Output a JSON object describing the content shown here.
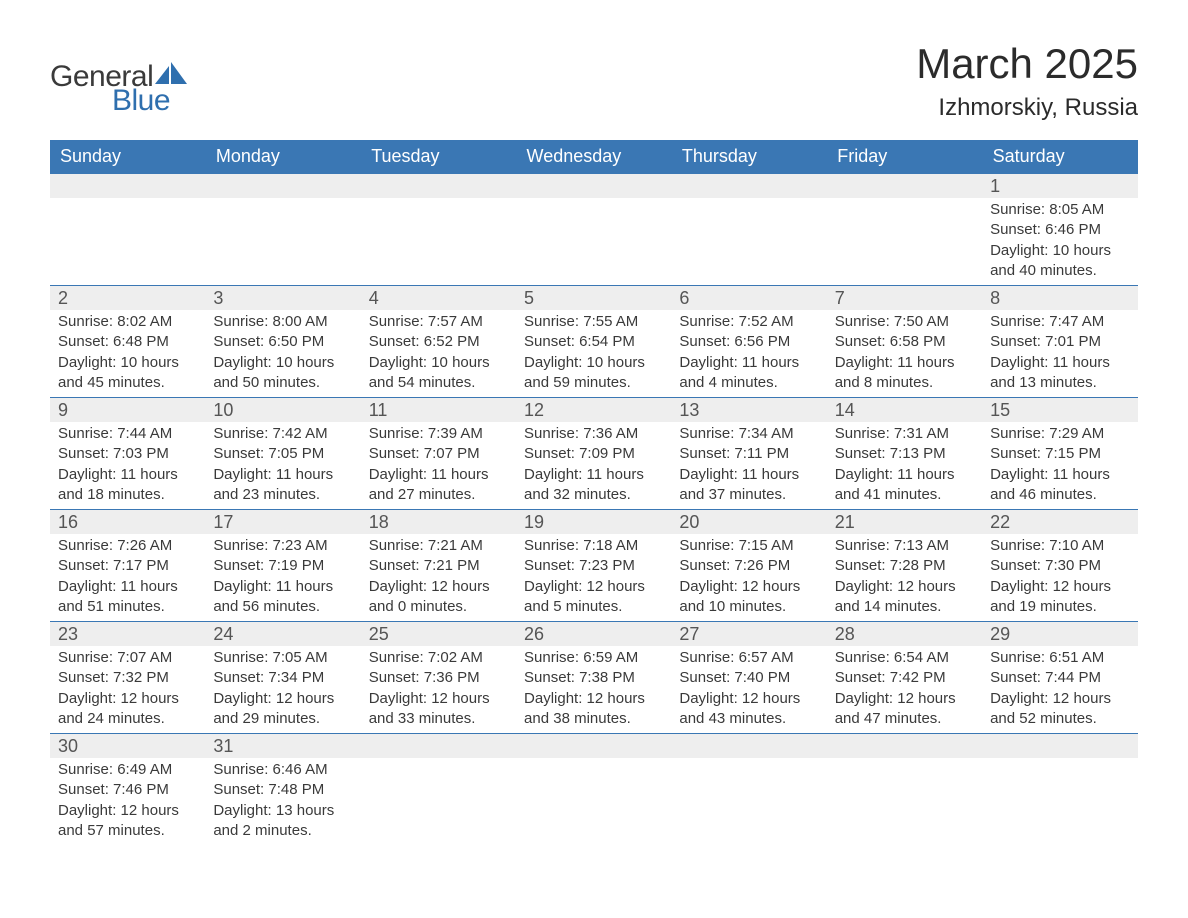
{
  "brand": {
    "part1": "General",
    "part2": "Blue"
  },
  "title": "March 2025",
  "location": "Izhmorskiy, Russia",
  "colors": {
    "header_bg": "#3a77b4",
    "accent": "#2f6fae",
    "row_alt": "#eeeeee",
    "text": "#3a3a3a"
  },
  "weekdays": [
    "Sunday",
    "Monday",
    "Tuesday",
    "Wednesday",
    "Thursday",
    "Friday",
    "Saturday"
  ],
  "weeks": [
    [
      null,
      null,
      null,
      null,
      null,
      null,
      {
        "n": "1",
        "sr": "Sunrise: 8:05 AM",
        "ss": "Sunset: 6:46 PM",
        "d1": "Daylight: 10 hours",
        "d2": "and 40 minutes."
      }
    ],
    [
      {
        "n": "2",
        "sr": "Sunrise: 8:02 AM",
        "ss": "Sunset: 6:48 PM",
        "d1": "Daylight: 10 hours",
        "d2": "and 45 minutes."
      },
      {
        "n": "3",
        "sr": "Sunrise: 8:00 AM",
        "ss": "Sunset: 6:50 PM",
        "d1": "Daylight: 10 hours",
        "d2": "and 50 minutes."
      },
      {
        "n": "4",
        "sr": "Sunrise: 7:57 AM",
        "ss": "Sunset: 6:52 PM",
        "d1": "Daylight: 10 hours",
        "d2": "and 54 minutes."
      },
      {
        "n": "5",
        "sr": "Sunrise: 7:55 AM",
        "ss": "Sunset: 6:54 PM",
        "d1": "Daylight: 10 hours",
        "d2": "and 59 minutes."
      },
      {
        "n": "6",
        "sr": "Sunrise: 7:52 AM",
        "ss": "Sunset: 6:56 PM",
        "d1": "Daylight: 11 hours",
        "d2": "and 4 minutes."
      },
      {
        "n": "7",
        "sr": "Sunrise: 7:50 AM",
        "ss": "Sunset: 6:58 PM",
        "d1": "Daylight: 11 hours",
        "d2": "and 8 minutes."
      },
      {
        "n": "8",
        "sr": "Sunrise: 7:47 AM",
        "ss": "Sunset: 7:01 PM",
        "d1": "Daylight: 11 hours",
        "d2": "and 13 minutes."
      }
    ],
    [
      {
        "n": "9",
        "sr": "Sunrise: 7:44 AM",
        "ss": "Sunset: 7:03 PM",
        "d1": "Daylight: 11 hours",
        "d2": "and 18 minutes."
      },
      {
        "n": "10",
        "sr": "Sunrise: 7:42 AM",
        "ss": "Sunset: 7:05 PM",
        "d1": "Daylight: 11 hours",
        "d2": "and 23 minutes."
      },
      {
        "n": "11",
        "sr": "Sunrise: 7:39 AM",
        "ss": "Sunset: 7:07 PM",
        "d1": "Daylight: 11 hours",
        "d2": "and 27 minutes."
      },
      {
        "n": "12",
        "sr": "Sunrise: 7:36 AM",
        "ss": "Sunset: 7:09 PM",
        "d1": "Daylight: 11 hours",
        "d2": "and 32 minutes."
      },
      {
        "n": "13",
        "sr": "Sunrise: 7:34 AM",
        "ss": "Sunset: 7:11 PM",
        "d1": "Daylight: 11 hours",
        "d2": "and 37 minutes."
      },
      {
        "n": "14",
        "sr": "Sunrise: 7:31 AM",
        "ss": "Sunset: 7:13 PM",
        "d1": "Daylight: 11 hours",
        "d2": "and 41 minutes."
      },
      {
        "n": "15",
        "sr": "Sunrise: 7:29 AM",
        "ss": "Sunset: 7:15 PM",
        "d1": "Daylight: 11 hours",
        "d2": "and 46 minutes."
      }
    ],
    [
      {
        "n": "16",
        "sr": "Sunrise: 7:26 AM",
        "ss": "Sunset: 7:17 PM",
        "d1": "Daylight: 11 hours",
        "d2": "and 51 minutes."
      },
      {
        "n": "17",
        "sr": "Sunrise: 7:23 AM",
        "ss": "Sunset: 7:19 PM",
        "d1": "Daylight: 11 hours",
        "d2": "and 56 minutes."
      },
      {
        "n": "18",
        "sr": "Sunrise: 7:21 AM",
        "ss": "Sunset: 7:21 PM",
        "d1": "Daylight: 12 hours",
        "d2": "and 0 minutes."
      },
      {
        "n": "19",
        "sr": "Sunrise: 7:18 AM",
        "ss": "Sunset: 7:23 PM",
        "d1": "Daylight: 12 hours",
        "d2": "and 5 minutes."
      },
      {
        "n": "20",
        "sr": "Sunrise: 7:15 AM",
        "ss": "Sunset: 7:26 PM",
        "d1": "Daylight: 12 hours",
        "d2": "and 10 minutes."
      },
      {
        "n": "21",
        "sr": "Sunrise: 7:13 AM",
        "ss": "Sunset: 7:28 PM",
        "d1": "Daylight: 12 hours",
        "d2": "and 14 minutes."
      },
      {
        "n": "22",
        "sr": "Sunrise: 7:10 AM",
        "ss": "Sunset: 7:30 PM",
        "d1": "Daylight: 12 hours",
        "d2": "and 19 minutes."
      }
    ],
    [
      {
        "n": "23",
        "sr": "Sunrise: 7:07 AM",
        "ss": "Sunset: 7:32 PM",
        "d1": "Daylight: 12 hours",
        "d2": "and 24 minutes."
      },
      {
        "n": "24",
        "sr": "Sunrise: 7:05 AM",
        "ss": "Sunset: 7:34 PM",
        "d1": "Daylight: 12 hours",
        "d2": "and 29 minutes."
      },
      {
        "n": "25",
        "sr": "Sunrise: 7:02 AM",
        "ss": "Sunset: 7:36 PM",
        "d1": "Daylight: 12 hours",
        "d2": "and 33 minutes."
      },
      {
        "n": "26",
        "sr": "Sunrise: 6:59 AM",
        "ss": "Sunset: 7:38 PM",
        "d1": "Daylight: 12 hours",
        "d2": "and 38 minutes."
      },
      {
        "n": "27",
        "sr": "Sunrise: 6:57 AM",
        "ss": "Sunset: 7:40 PM",
        "d1": "Daylight: 12 hours",
        "d2": "and 43 minutes."
      },
      {
        "n": "28",
        "sr": "Sunrise: 6:54 AM",
        "ss": "Sunset: 7:42 PM",
        "d1": "Daylight: 12 hours",
        "d2": "and 47 minutes."
      },
      {
        "n": "29",
        "sr": "Sunrise: 6:51 AM",
        "ss": "Sunset: 7:44 PM",
        "d1": "Daylight: 12 hours",
        "d2": "and 52 minutes."
      }
    ],
    [
      {
        "n": "30",
        "sr": "Sunrise: 6:49 AM",
        "ss": "Sunset: 7:46 PM",
        "d1": "Daylight: 12 hours",
        "d2": "and 57 minutes."
      },
      {
        "n": "31",
        "sr": "Sunrise: 6:46 AM",
        "ss": "Sunset: 7:48 PM",
        "d1": "Daylight: 13 hours",
        "d2": "and 2 minutes."
      },
      null,
      null,
      null,
      null,
      null
    ]
  ]
}
